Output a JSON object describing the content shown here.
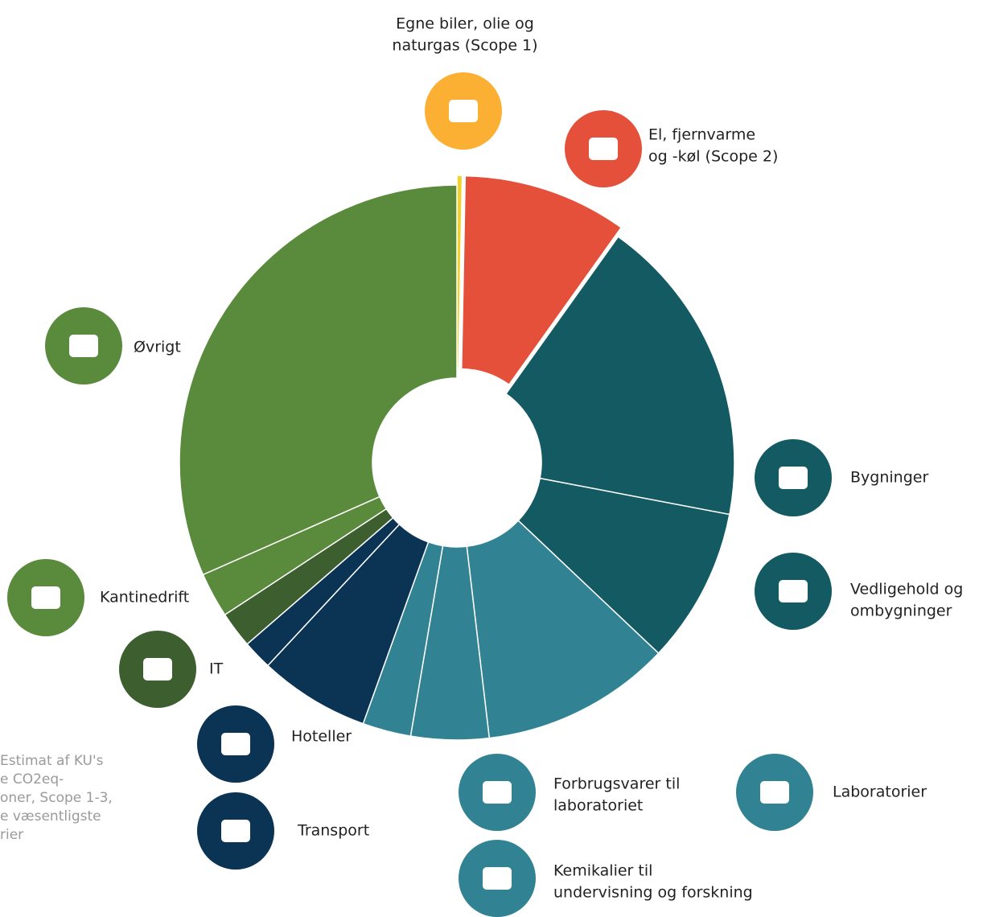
{
  "chart_data": {
    "type": "donut",
    "categories": [
      [
        "Egne biler, olie og",
        "naturgas (Scope 1)"
      ],
      [
        "El, fjernvarme",
        "og -køl (Scope 2)"
      ],
      [
        "Bygninger"
      ],
      [
        "Vedligehold og",
        "ombygninger"
      ],
      [
        "Forbrugsvarer til",
        "laboratoriet"
      ],
      [
        "Laboratorier"
      ],
      [
        "Kemikalier til",
        "undervisning og forskning"
      ],
      [
        "Transport"
      ],
      [
        "Hoteller"
      ],
      [
        "IT"
      ],
      [
        "Kantinedrift"
      ],
      [
        "Øvrigt"
      ]
    ],
    "values": [
      0.3,
      9.5,
      18,
      9,
      11,
      4.5,
      2.8,
      6.4,
      1.7,
      2.1,
      2.6,
      31.4
    ],
    "colors": [
      "#f2d22a",
      "#e4503a",
      "#135a63",
      "#135a63",
      "#318292",
      "#318292",
      "#318292",
      "#0b3354",
      "#0b3354",
      "#3d5f30",
      "#5a8a3c",
      "#5a8a3c"
    ],
    "exploded": [
      0,
      1
    ],
    "note": [
      "Estimat af KU's",
      "e CO2eq-",
      "oner, Scope 1-3,",
      "e væsentligste",
      "rier"
    ]
  }
}
